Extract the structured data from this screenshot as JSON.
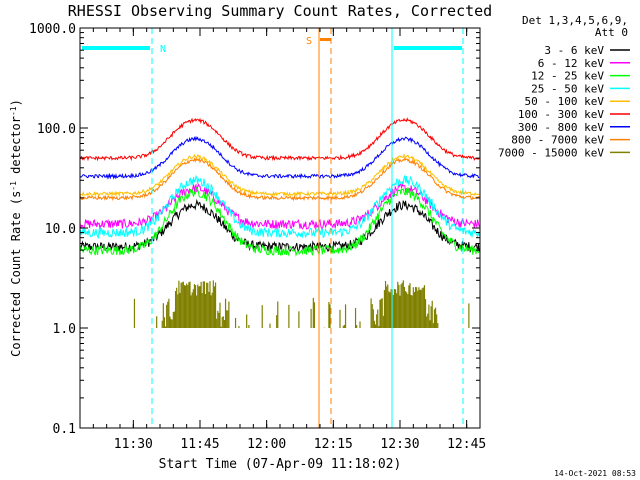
{
  "chart_data": {
    "type": "line",
    "title": "RHESSI Observing Summary Count Rates, Corrected",
    "xlabel": "Start Time (07-Apr-09 11:18:02)",
    "ylabel": "Corrected Count Rate (s⁻¹ detector⁻¹)",
    "ylabel_parts": [
      "Corrected Count Rate (s",
      "-1",
      " detector",
      "-1",
      ")"
    ],
    "y_scale": "log",
    "ylim": [
      0.1,
      1000
    ],
    "y_tick_labels": [
      {
        "value": 1000,
        "label": "1000.0"
      },
      {
        "value": 100,
        "label": "100.0"
      },
      {
        "value": 10,
        "label": "10.0"
      },
      {
        "value": 1,
        "label": "1.0"
      },
      {
        "value": 0.1,
        "label": "0.1"
      }
    ],
    "xlim_minutes": [
      0,
      90
    ],
    "x_tick_labels": [
      {
        "minute": 12,
        "label": "11:30"
      },
      {
        "minute": 27,
        "label": "11:45"
      },
      {
        "minute": 42,
        "label": "12:00"
      },
      {
        "minute": 57,
        "label": "12:15"
      },
      {
        "minute": 72,
        "label": "12:30"
      },
      {
        "minute": 87,
        "label": "12:45"
      }
    ],
    "legend_header": [
      "Det 1,3,4,5,6,9,",
      "Att 0"
    ],
    "legend_position": "right",
    "series": [
      {
        "name": "3 - 6 keV",
        "color": "#000000",
        "base": 6.5,
        "peak": 17
      },
      {
        "name": "6 - 12 keV",
        "color": "#ff00ff",
        "base": 11,
        "peak": 25
      },
      {
        "name": "12 - 25 keV",
        "color": "#00ff00",
        "base": 6,
        "peak": 23
      },
      {
        "name": "25 - 50 keV",
        "color": "#00ffff",
        "base": 9,
        "peak": 30
      },
      {
        "name": "50 - 100 keV",
        "color": "#ffbf00",
        "base": 22,
        "peak": 52
      },
      {
        "name": "100 - 300 keV",
        "color": "#ff0000",
        "base": 50,
        "peak": 120
      },
      {
        "name": "300 - 800 keV",
        "color": "#0000ff",
        "base": 33,
        "peak": 78
      },
      {
        "name": "800 - 7000 keV",
        "color": "#ff8000",
        "base": 20,
        "peak": 48
      },
      {
        "name": "7000 - 15000 keV",
        "color": "#808000",
        "base": 1.0,
        "peak": 3.0
      }
    ],
    "peaks_at_time": [
      "11:44",
      "12:31"
    ],
    "annotations": [
      {
        "text": "N",
        "color": "#00ffff",
        "meaning": "night"
      },
      {
        "text": "S",
        "color": "#ff8000",
        "meaning": "SAA"
      }
    ],
    "timestamp": "14-Oct-2021 08:53"
  }
}
